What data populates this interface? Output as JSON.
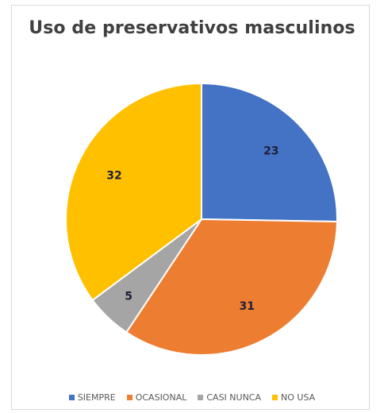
{
  "chart_data": {
    "type": "pie",
    "title": "Uso de preservativos masculinos",
    "categories": [
      "SIEMPRE",
      "OCASIONAL",
      "CASI NUNCA",
      "NO USA"
    ],
    "values": [
      23,
      31,
      5,
      32
    ],
    "colors": [
      "#4472c4",
      "#ed7d31",
      "#a5a5a5",
      "#ffc000"
    ],
    "data_labels": [
      "23",
      "31",
      "5",
      "32"
    ],
    "legend_position": "bottom"
  }
}
